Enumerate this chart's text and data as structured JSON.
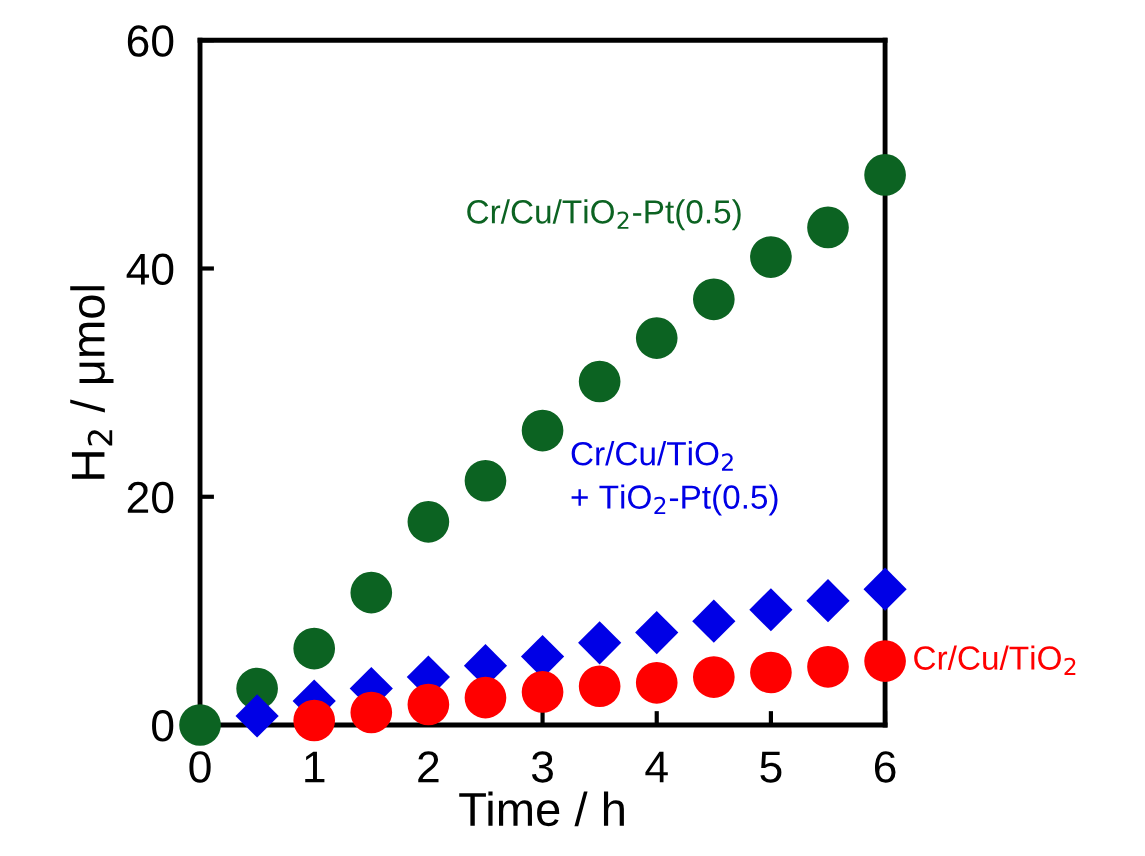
{
  "chart_data": {
    "type": "scatter",
    "xlabel": "Time / h",
    "ylabel": "H$_{2}$ / μmol",
    "xlim": [
      0,
      6
    ],
    "ylim": [
      0,
      60
    ],
    "xticks": [
      0,
      1,
      2,
      3,
      4,
      5,
      6
    ],
    "yticks": [
      0,
      20,
      40,
      60
    ],
    "grid": false,
    "legend": false,
    "series": [
      {
        "name": "Cr/Cu/TiO$_{2}$-Pt(0.5)",
        "color": "#0c6322",
        "marker": "circle",
        "x": [
          0,
          0.5,
          1,
          1.5,
          2,
          2.5,
          3,
          3.5,
          4,
          4.5,
          5,
          5.5,
          6
        ],
        "values": [
          0,
          3.2,
          6.7,
          11.6,
          17.8,
          21.4,
          25.8,
          30.1,
          33.9,
          37.3,
          41.0,
          43.6,
          48.2
        ]
      },
      {
        "name": "Cr/Cu/TiO$_{2}$\n+ TiO$_{2}$-Pt(0.5)",
        "color": "#0000e6",
        "marker": "diamond",
        "x": [
          0.5,
          1,
          1.5,
          2,
          2.5,
          3,
          3.5,
          4,
          4.5,
          5,
          5.5,
          6
        ],
        "values": [
          0.8,
          2.1,
          3.2,
          4.2,
          5.2,
          6.0,
          7.2,
          8.1,
          9.1,
          10.1,
          10.9,
          11.9
        ]
      },
      {
        "name": "Cr/Cu/TiO$_{2}$",
        "color": "#ff0000",
        "marker": "circle",
        "x": [
          1,
          1.5,
          2,
          2.5,
          3,
          3.5,
          4,
          4.5,
          5,
          5.5,
          6
        ],
        "values": [
          0.4,
          1.1,
          1.8,
          2.4,
          2.9,
          3.4,
          3.7,
          4.2,
          4.6,
          5.1,
          5.6
        ]
      }
    ]
  }
}
